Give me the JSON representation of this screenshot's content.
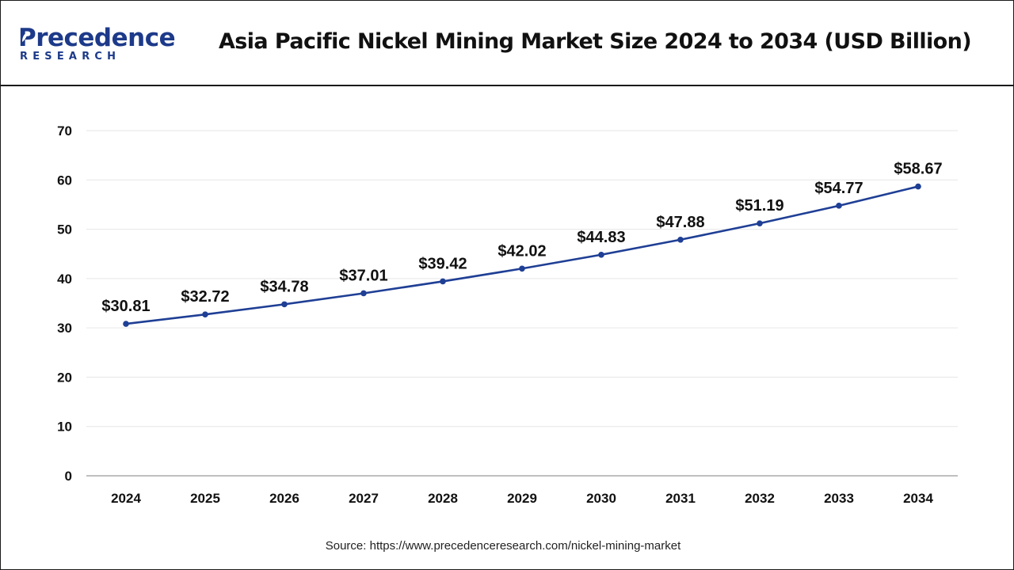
{
  "brand": {
    "name": "Precedence",
    "subline": "RESEARCH"
  },
  "title": "Asia Pacific Nickel Mining Market Size 2024 to 2034 (USD Billion)",
  "source": "Source: https://www.precedenceresearch.com/nickel-mining-market",
  "colors": {
    "line": "#1f3f95",
    "axis": "#999999",
    "grid": "#e6e6e6",
    "brand": "#1d3a8a"
  },
  "chart_data": {
    "type": "line",
    "title": "Asia Pacific Nickel Mining Market Size 2024 to 2034 (USD Billion)",
    "xlabel": "",
    "ylabel": "",
    "categories": [
      "2024",
      "2025",
      "2026",
      "2027",
      "2028",
      "2029",
      "2030",
      "2031",
      "2032",
      "2033",
      "2034"
    ],
    "series": [
      {
        "values": [
          30.81,
          32.72,
          34.78,
          37.01,
          39.42,
          42.02,
          44.83,
          47.88,
          51.19,
          54.77,
          58.67
        ],
        "labels": [
          "$30.81",
          "$32.72",
          "$34.78",
          "$37.01",
          "$39.42",
          "$42.02",
          "$44.83",
          "$47.88",
          "$51.19",
          "$54.77",
          "$58.67"
        ]
      }
    ],
    "ylim": [
      0,
      70
    ],
    "yticks": [
      "0",
      "10",
      "20",
      "30",
      "40",
      "50",
      "60",
      "70"
    ],
    "grid": true,
    "legend": "none"
  }
}
